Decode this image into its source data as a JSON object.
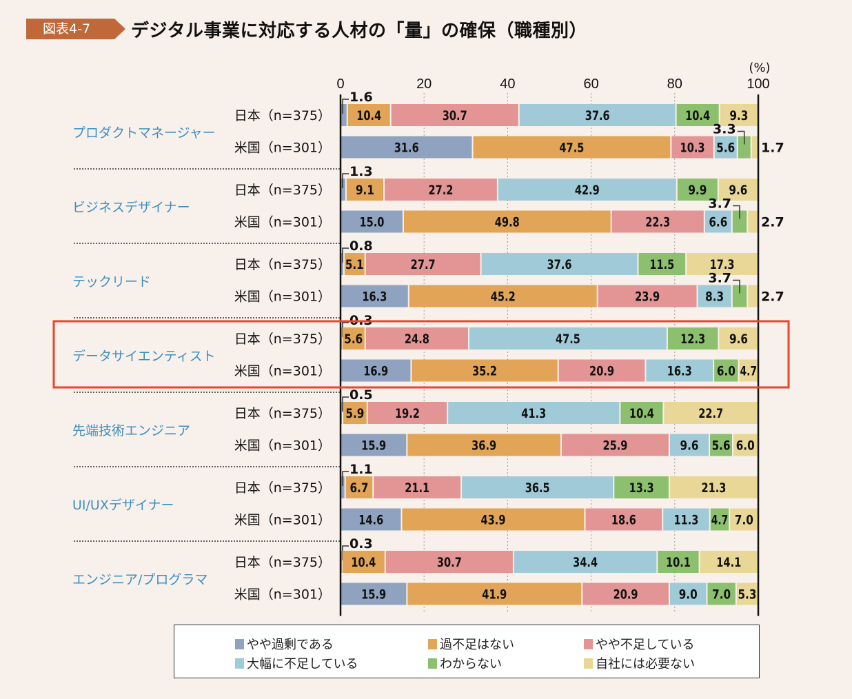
{
  "header": {
    "figure_label": "図表4-7",
    "title": "デジタル事業に対応する人材の「量」の確保（職種別）"
  },
  "highlight": {
    "category": "データサイエンティスト",
    "color": "#e8452c"
  },
  "chart_data": {
    "type": "bar",
    "orientation": "horizontal",
    "stacked": true,
    "title": "デジタル事業に対応する人材の「量」の確保（職種別）",
    "unit_label": "(%)",
    "xlim": [
      0,
      100
    ],
    "xticks": [
      0,
      20,
      40,
      60,
      80,
      100
    ],
    "grid": "dotted vertical",
    "legend_position": "bottom",
    "series": [
      {
        "name": "やや過剰である",
        "color": "#8fa3c0"
      },
      {
        "name": "過不足はない",
        "color": "#e2a456"
      },
      {
        "name": "やや不足している",
        "color": "#e39495"
      },
      {
        "name": "大幅に不足している",
        "color": "#a0cad8"
      },
      {
        "name": "わからない",
        "color": "#8cc06f"
      },
      {
        "name": "自社には必要ない",
        "color": "#e9d798"
      }
    ],
    "groups": [
      {
        "category": "プロダクトマネージャー",
        "rows": [
          {
            "label": "日本（n=375）",
            "values": [
              1.6,
              10.4,
              30.7,
              37.6,
              10.4,
              9.3
            ]
          },
          {
            "label": "米国（n=301）",
            "values": [
              31.6,
              47.5,
              10.3,
              5.6,
              3.3,
              1.7
            ]
          }
        ]
      },
      {
        "category": "ビジネスデザイナー",
        "rows": [
          {
            "label": "日本（n=375）",
            "values": [
              1.3,
              9.1,
              27.2,
              42.9,
              9.9,
              9.6
            ]
          },
          {
            "label": "米国（n=301）",
            "values": [
              15.0,
              49.8,
              22.3,
              6.6,
              3.7,
              2.7
            ]
          }
        ]
      },
      {
        "category": "テックリード",
        "rows": [
          {
            "label": "日本（n=375）",
            "values": [
              0.8,
              5.1,
              27.7,
              37.6,
              11.5,
              17.3
            ]
          },
          {
            "label": "米国（n=301）",
            "values": [
              16.3,
              45.2,
              23.9,
              8.3,
              3.7,
              2.7
            ]
          }
        ]
      },
      {
        "category": "データサイエンティスト",
        "rows": [
          {
            "label": "日本（n=375）",
            "values": [
              0.3,
              5.6,
              24.8,
              47.5,
              12.3,
              9.6
            ]
          },
          {
            "label": "米国（n=301）",
            "values": [
              16.9,
              35.2,
              20.9,
              16.3,
              6.0,
              4.7
            ]
          }
        ]
      },
      {
        "category": "先端技術エンジニア",
        "rows": [
          {
            "label": "日本（n=375）",
            "values": [
              0.5,
              5.9,
              19.2,
              41.3,
              10.4,
              22.7
            ]
          },
          {
            "label": "米国（n=301）",
            "values": [
              15.9,
              36.9,
              25.9,
              9.6,
              5.6,
              6.0
            ]
          }
        ]
      },
      {
        "category": "UI/UXデザイナー",
        "rows": [
          {
            "label": "日本（n=375）",
            "values": [
              1.1,
              6.7,
              21.1,
              36.5,
              13.3,
              21.3
            ]
          },
          {
            "label": "米国（n=301）",
            "values": [
              14.6,
              43.9,
              18.6,
              11.3,
              4.7,
              7.0
            ]
          }
        ]
      },
      {
        "category": "エンジニア/プログラマ",
        "rows": [
          {
            "label": "日本（n=375）",
            "values": [
              0.3,
              10.4,
              30.7,
              34.4,
              10.1,
              14.1
            ]
          },
          {
            "label": "米国（n=301）",
            "values": [
              15.9,
              41.9,
              20.9,
              9.0,
              7.0,
              5.3
            ]
          }
        ]
      }
    ]
  }
}
